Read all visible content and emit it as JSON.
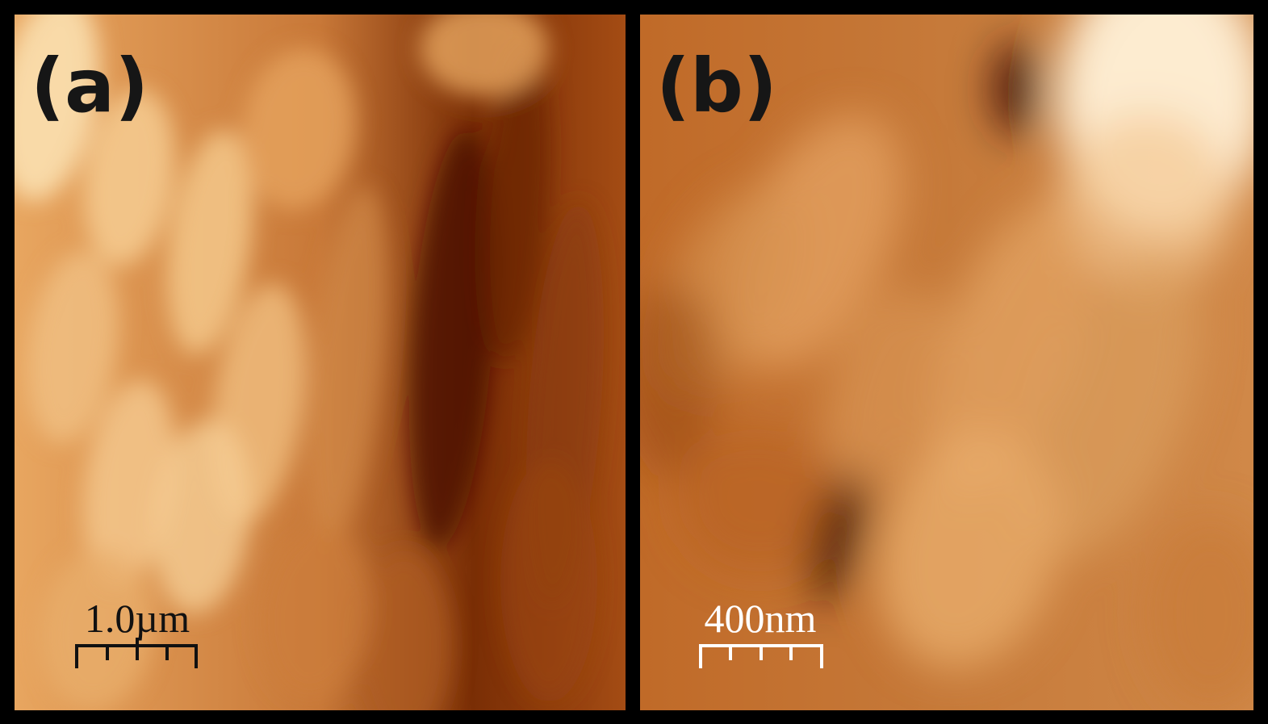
{
  "panels": [
    {
      "label": "(a)",
      "scale_bar": "1.0µm"
    },
    {
      "label": "(b)",
      "scale_bar": "400nm"
    }
  ]
}
